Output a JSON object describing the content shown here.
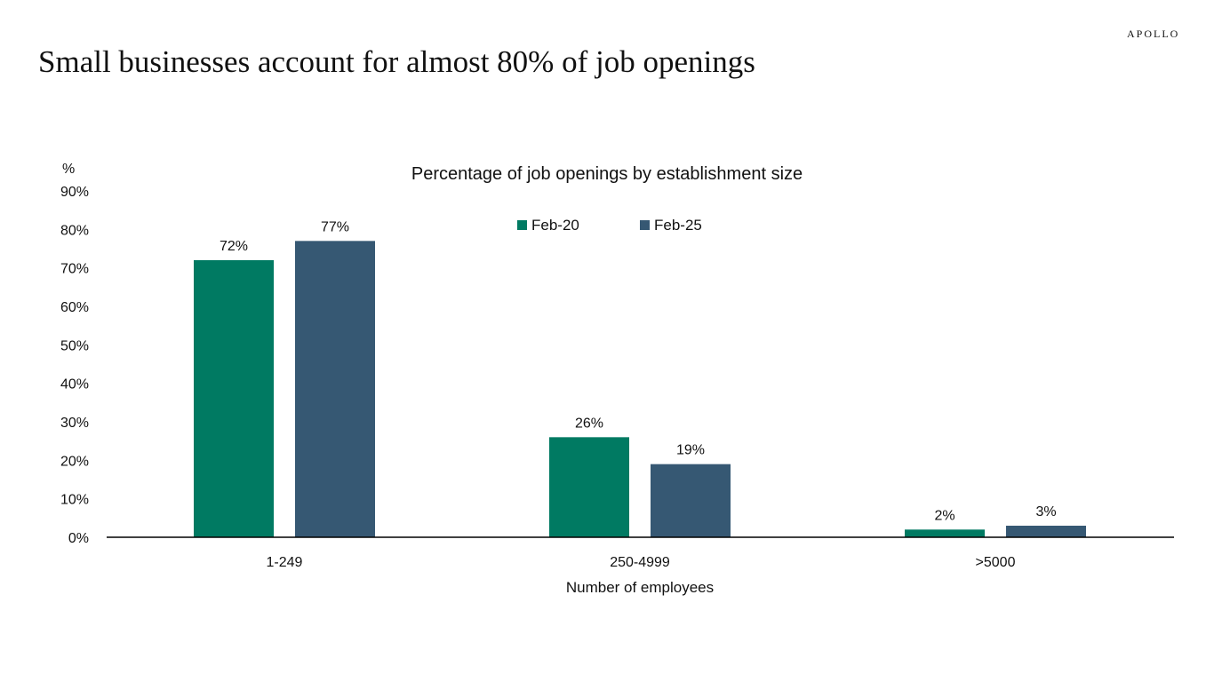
{
  "brand": "APOLLO",
  "headline": "Small businesses account for almost 80% of job openings",
  "colors": {
    "feb20": "#007a62",
    "feb25": "#365873",
    "axis": "#000000"
  },
  "chart_data": {
    "type": "bar",
    "title": "Percentage of job openings by establishment size",
    "unit_label": "%",
    "xlabel": "Number of employees",
    "ylabel": "%",
    "ylim": [
      0,
      90
    ],
    "yticks": [
      0,
      10,
      20,
      30,
      40,
      50,
      60,
      70,
      80,
      90
    ],
    "ytick_labels": [
      "0%",
      "10%",
      "20%",
      "30%",
      "40%",
      "50%",
      "60%",
      "70%",
      "80%",
      "90%"
    ],
    "categories": [
      "1-249",
      "250-4999",
      ">5000"
    ],
    "legend_position": "top-center",
    "series": [
      {
        "name": "Feb-20",
        "values": [
          72,
          26,
          2
        ],
        "labels": [
          "72%",
          "26%",
          "2%"
        ],
        "color": "#007a62"
      },
      {
        "name": "Feb-25",
        "values": [
          77,
          19,
          3
        ],
        "labels": [
          "77%",
          "19%",
          "3%"
        ],
        "color": "#365873"
      }
    ]
  }
}
